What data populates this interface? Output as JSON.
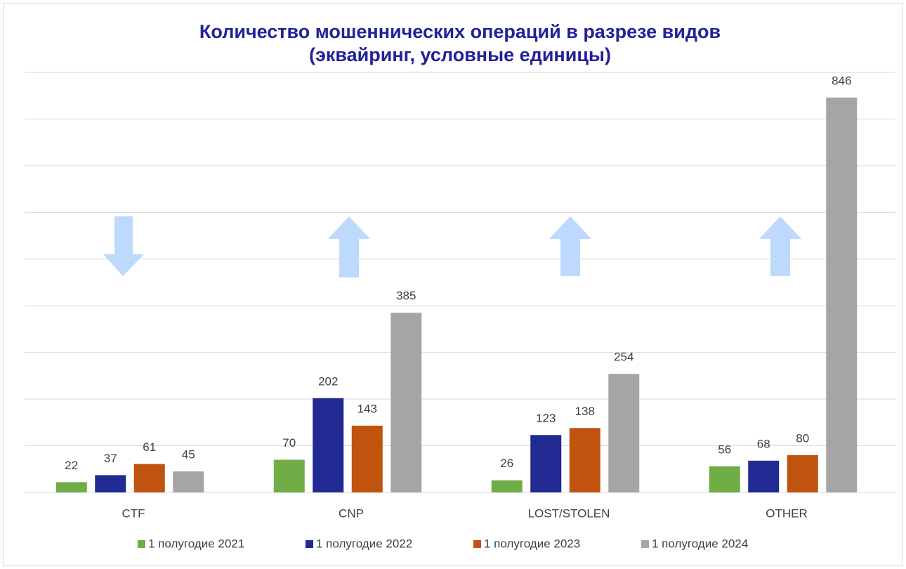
{
  "chart_data": {
    "type": "bar",
    "title": "Количество мошеннических операций в разрезе видов",
    "subtitle": "(эквайринг, условные единицы)",
    "categories": [
      "CTF",
      "CNP",
      "LOST/STOLEN",
      "OTHER"
    ],
    "series": [
      {
        "name": "1 полугодие 2021",
        "color": "#70ad47",
        "values": [
          22,
          70,
          26,
          56
        ]
      },
      {
        "name": "1 полугодие 2022",
        "color": "#202a92",
        "values": [
          37,
          202,
          123,
          68
        ]
      },
      {
        "name": "1 полугодие 2023",
        "color": "#c0530e",
        "values": [
          61,
          143,
          138,
          80
        ]
      },
      {
        "name": "1 полугодие 2024",
        "color": "#a5a5a5",
        "values": [
          45,
          385,
          254,
          846
        ]
      }
    ],
    "ylim": [
      0,
      900
    ],
    "yticks": [
      0,
      100,
      200,
      300,
      400,
      500,
      600,
      700,
      800,
      900
    ],
    "grid": true,
    "legend": "bottom"
  }
}
